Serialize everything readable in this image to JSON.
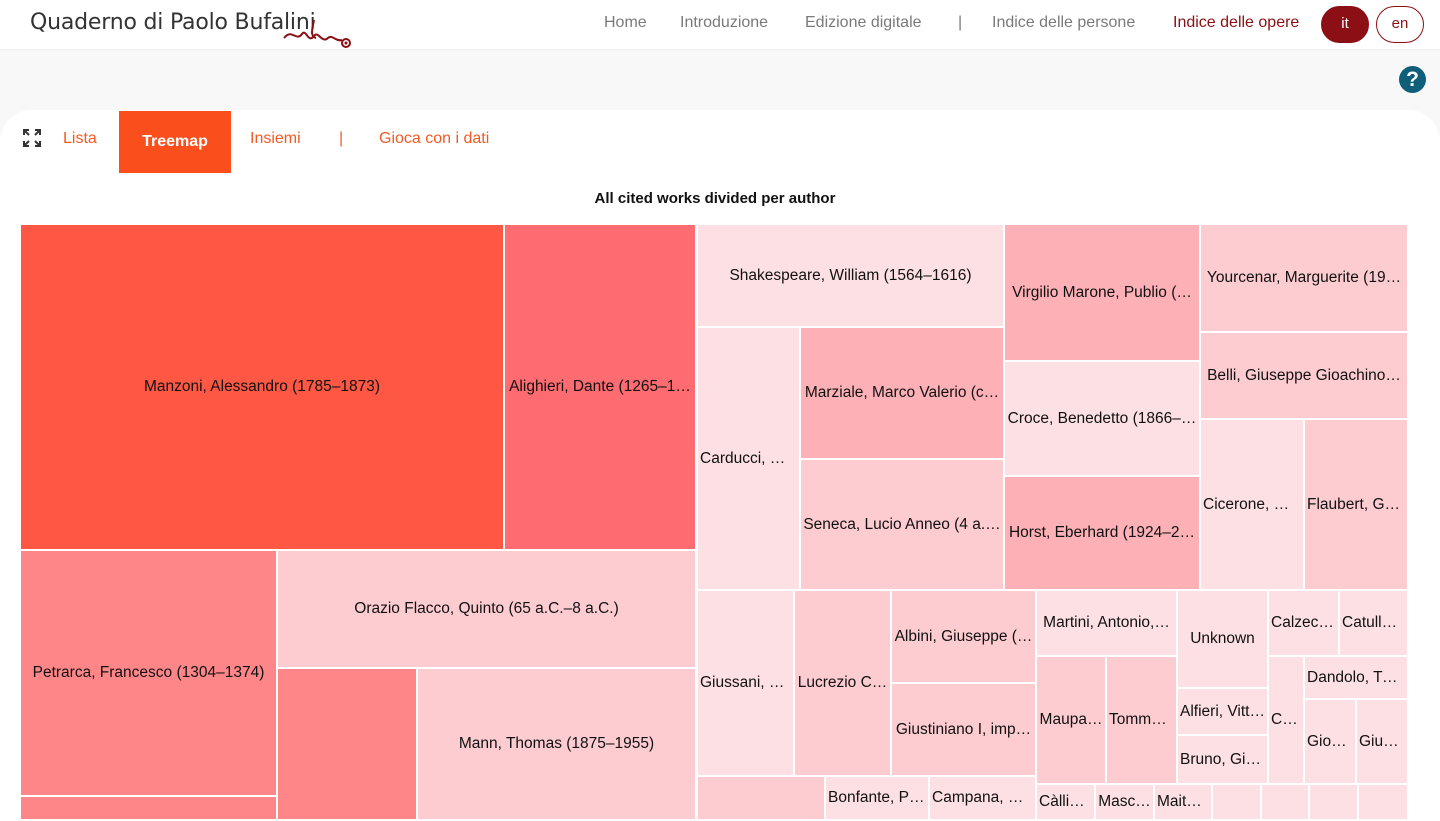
{
  "brand": {
    "title": "Quaderno di Paolo Bufalini"
  },
  "nav": {
    "items": [
      "Home",
      "Introduzione",
      "Edizione digitale",
      "|",
      "Indice delle persone",
      "Indice delle opere"
    ],
    "active": "Indice delle opere"
  },
  "lang": {
    "current": "it",
    "other": "en"
  },
  "help": {
    "symbol": "?"
  },
  "tabs": {
    "items": [
      "Lista",
      "Treemap",
      "Insiemi",
      "|",
      "Gioca con i dati"
    ],
    "active": "Treemap"
  },
  "colors": {
    "accent": "#f15a24",
    "brand": "#8b0f14",
    "shade1": "#fe5845",
    "shade2": "#fe6b71",
    "shade3": "#fe8689",
    "shade4": "#fdb1b6",
    "shade5": "#fdccd0",
    "shade6": "#fde0e3"
  },
  "chart_data": {
    "type": "treemap",
    "title": "All cited works divided per author",
    "cells": [
      {
        "label": "Manzoni, Alessandro (1785–1873)",
        "shade": 1
      },
      {
        "label": "Alighieri, Dante (1265–1…",
        "shade": 2
      },
      {
        "label": "Shakespeare, William (1564–1616)",
        "shade": 6
      },
      {
        "label": "Virgilio Marone, Publio (…",
        "shade": 4
      },
      {
        "label": "Yourcenar, Marguerite (19…",
        "shade": 5
      },
      {
        "label": "Belli, Giuseppe Gioachino…",
        "shade": 5
      },
      {
        "label": "Carducci, Gi…",
        "shade": 6
      },
      {
        "label": "Marziale, Marco Valerio (c…",
        "shade": 4
      },
      {
        "label": "Seneca, Lucio Anneo (4 a.…",
        "shade": 5
      },
      {
        "label": "Croce, Benedetto (1866–…",
        "shade": 6
      },
      {
        "label": "Horst, Eberhard (1924–2…",
        "shade": 4
      },
      {
        "label": "Cicerone, M…",
        "shade": 6
      },
      {
        "label": "Flaubert, Gu…",
        "shade": 5
      },
      {
        "label": "Petrarca, Francesco (1304–1374)",
        "shade": 3
      },
      {
        "label": "Orazio Flacco, Quinto (65 a.C.–8 a.C.)",
        "shade": 5
      },
      {
        "label": "",
        "shade": 3
      },
      {
        "label": "Mann, Thomas (1875–1955)",
        "shade": 5
      },
      {
        "label": "",
        "shade": 3
      },
      {
        "label": "Giussani, C…",
        "shade": 6
      },
      {
        "label": "Lucrezio C…",
        "shade": 5
      },
      {
        "label": "Albini, Giuseppe (…",
        "shade": 5
      },
      {
        "label": "Giustiniano I, imp…",
        "shade": 5
      },
      {
        "label": "Martini, Antonio,…",
        "shade": 6
      },
      {
        "label": "Unknown",
        "shade": 6
      },
      {
        "label": "Calzecc…",
        "shade": 6
      },
      {
        "label": "Catullo,…",
        "shade": 6
      },
      {
        "label": "Dandolo, Tu…",
        "shade": 6
      },
      {
        "label": "Maupa…",
        "shade": 5
      },
      {
        "label": "Tomma…",
        "shade": 5
      },
      {
        "label": "Alfieri, Vitt…",
        "shade": 6
      },
      {
        "label": "Bruno, Gio…",
        "shade": 6
      },
      {
        "label": "Cr…",
        "shade": 6
      },
      {
        "label": "Giov…",
        "shade": 6
      },
      {
        "label": "Giust…",
        "shade": 6
      },
      {
        "label": "",
        "shade": 5
      },
      {
        "label": "Bonfante, Pi…",
        "shade": 6
      },
      {
        "label": "Campana, D…",
        "shade": 6
      },
      {
        "label": "Càllia…",
        "shade": 6
      },
      {
        "label": "Masc…",
        "shade": 6
      },
      {
        "label": "Maita…",
        "shade": 6
      },
      {
        "label": "",
        "shade": 6
      },
      {
        "label": "",
        "shade": 6
      },
      {
        "label": "",
        "shade": 6
      },
      {
        "label": "",
        "shade": 6
      }
    ]
  }
}
